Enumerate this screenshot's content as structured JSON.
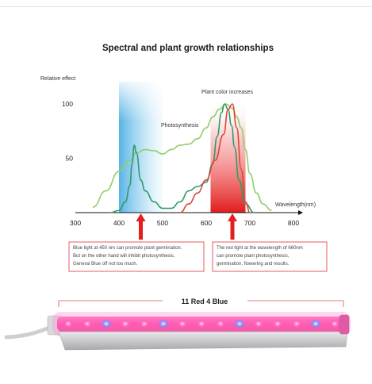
{
  "title": "Spectral and plant growth relationships",
  "colors": {
    "photosynthesis_line": "#8fce6a",
    "chlorophyll_line": "#2f9a6b",
    "red_curve": "#d64a3a",
    "blue_band": "#5cb5e8",
    "red_band": "#e21b1b",
    "arrow": "#e41e1e",
    "note_border": "#e84040",
    "light_pink": "#ff5fae",
    "light_blue": "#6a78ff"
  },
  "chart_data": {
    "type": "line",
    "ylabel": "Relative effect",
    "xlabel": "Wavelength(nm)",
    "xlim": [
      300,
      800
    ],
    "ylim": [
      0,
      100
    ],
    "xticks": [
      300,
      400,
      500,
      600,
      700,
      800
    ],
    "yticks": [
      50,
      100
    ],
    "bands": [
      {
        "from": 400,
        "to": 500,
        "color": "blue"
      },
      {
        "from": 610,
        "to": 690,
        "color": "red"
      }
    ],
    "series": [
      {
        "name": "Photosynthesis",
        "x": [
          340,
          370,
          400,
          425,
          440,
          460,
          480,
          500,
          520,
          540,
          560,
          580,
          600,
          615,
          630,
          645,
          660,
          670,
          680,
          690,
          700,
          715,
          730,
          750
        ],
        "y": [
          5,
          20,
          38,
          48,
          55,
          58,
          57,
          54,
          58,
          62,
          63,
          68,
          78,
          88,
          95,
          100,
          96,
          88,
          78,
          58,
          36,
          18,
          8,
          2
        ]
      },
      {
        "x": [
          380,
          400,
          415,
          425,
          430,
          435,
          440,
          450,
          460,
          480,
          500,
          520,
          540,
          560,
          580,
          600,
          615,
          625,
          635,
          642,
          650,
          658,
          665,
          675,
          690,
          710
        ],
        "y": [
          0,
          2,
          10,
          25,
          45,
          62,
          55,
          30,
          20,
          10,
          4,
          4,
          10,
          20,
          24,
          28,
          45,
          70,
          92,
          100,
          95,
          80,
          60,
          30,
          8,
          0
        ]
      },
      {
        "x": [
          540,
          560,
          580,
          600,
          620,
          640,
          650,
          660,
          670,
          680,
          690,
          700
        ],
        "y": [
          0,
          8,
          18,
          30,
          48,
          72,
          95,
          100,
          78,
          40,
          10,
          0
        ]
      }
    ],
    "annotations": [
      "Plant color increases",
      "Blue light at 450 nm can promote plant germination.",
      "But on the other hand will inhibit photosynthesis,",
      "General Blue off not too much.",
      "The red light at the wavelength of 660nm",
      "can promote plant photosynthesis,",
      "germination, flowering and results."
    ]
  },
  "product": {
    "label": "11 Red 4 Blue",
    "leds": [
      "red",
      "red",
      "blue",
      "red",
      "red",
      "blue",
      "red",
      "red",
      "red",
      "blue",
      "red",
      "red",
      "red",
      "blue",
      "red"
    ]
  }
}
